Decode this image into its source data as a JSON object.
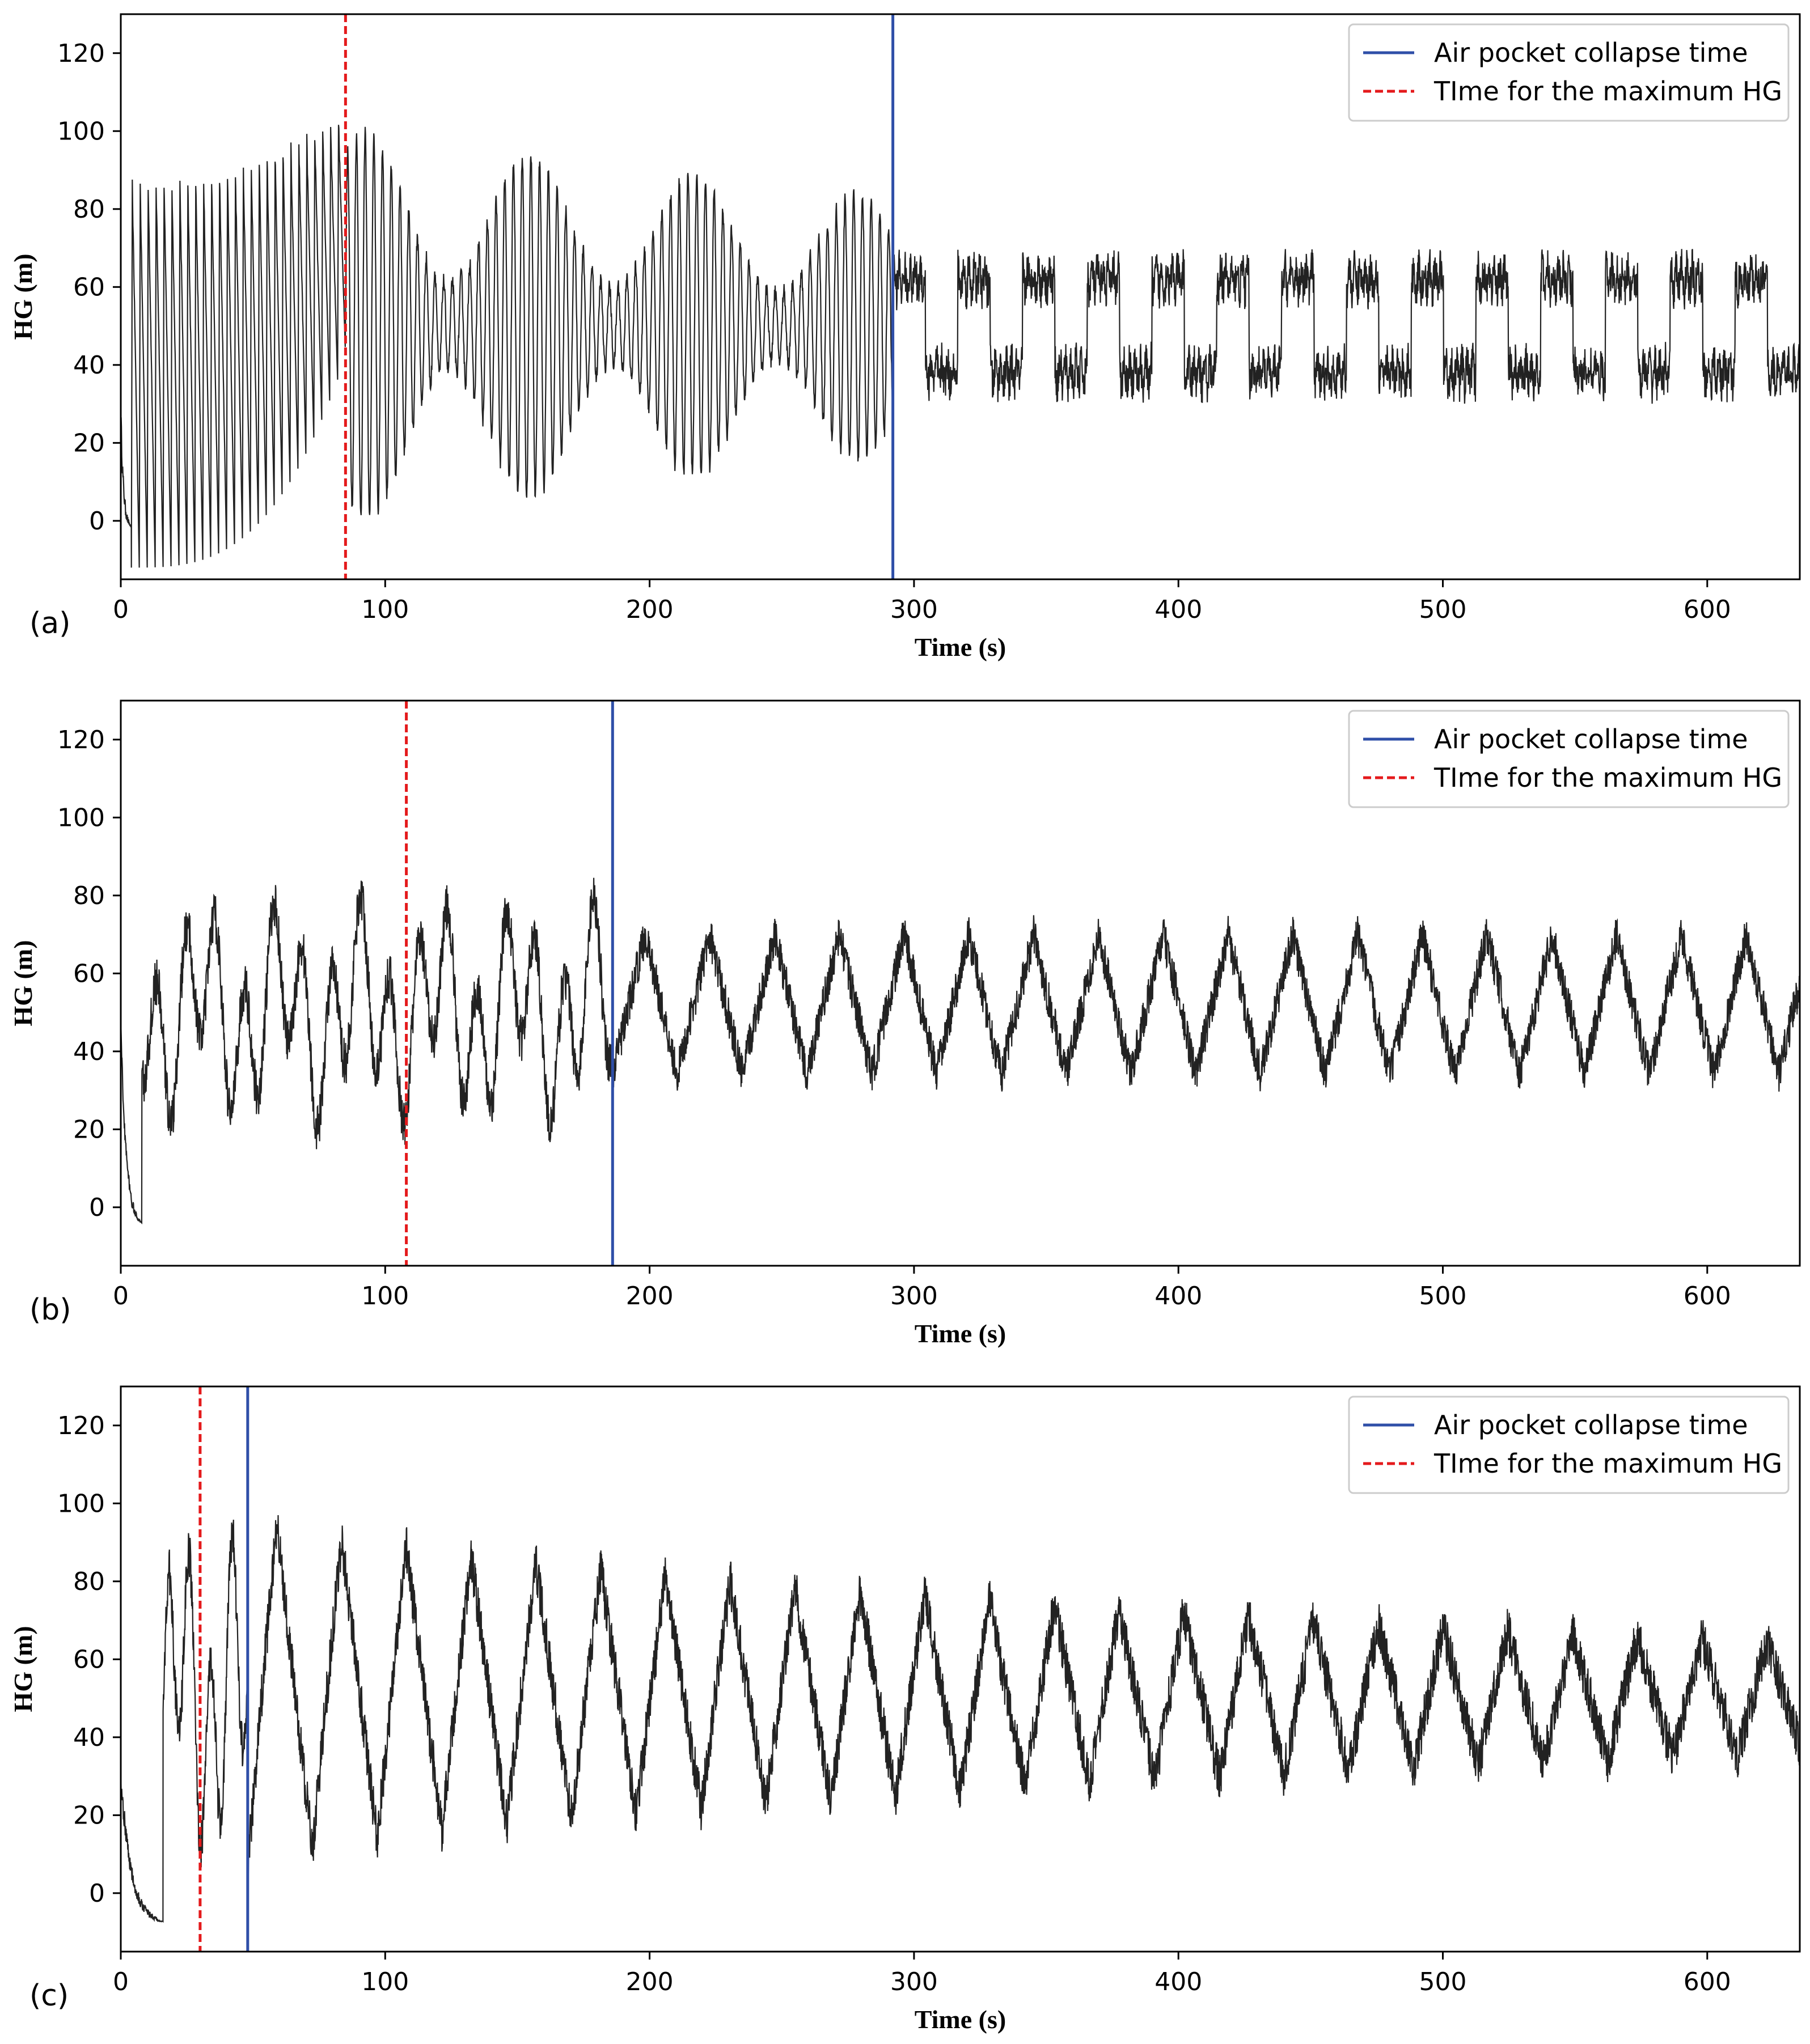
{
  "chart_data": [
    {
      "type": "line",
      "panel_label": "(a)",
      "xlabel": "Time (s)",
      "ylabel": "HG (m)",
      "xlim": [
        0,
        635
      ],
      "ylim": [
        -15,
        130
      ],
      "xticks": [
        0,
        100,
        200,
        300,
        400,
        500,
        600
      ],
      "yticks": [
        0,
        20,
        40,
        60,
        80,
        100,
        120
      ],
      "legend_position": "top-right",
      "legend": [
        "Air pocket collapse time",
        "TIme for the maximum HG"
      ],
      "collapse_time": 292,
      "max_hg_time": 85,
      "series": {
        "name": "HG",
        "color": "#222222",
        "segments": [
          {
            "t0": 0,
            "t1": 4,
            "period": 3.0,
            "kind": "decay",
            "hi": 28,
            "lo": -2
          },
          {
            "t0": 4,
            "t1": 85,
            "period": 3.0,
            "kind": "osc",
            "hi0": 86,
            "hi1": 104,
            "lo0": -12,
            "lo1": 42
          },
          {
            "t0": 85,
            "t1": 292,
            "period": 3.3,
            "kind": "beat",
            "center": 50,
            "amp_min": 12,
            "amp_max": 50,
            "beat": 62
          },
          {
            "t0": 292,
            "t1": 635,
            "period": 24.5,
            "kind": "square",
            "hi": 62,
            "lo": 38,
            "noise": 5
          }
        ]
      }
    },
    {
      "type": "line",
      "panel_label": "(b)",
      "xlabel": "Time (s)",
      "ylabel": "HG (m)",
      "xlim": [
        0,
        635
      ],
      "ylim": [
        -15,
        130
      ],
      "xticks": [
        0,
        100,
        200,
        300,
        400,
        500,
        600
      ],
      "yticks": [
        0,
        20,
        40,
        60,
        80,
        100,
        120
      ],
      "legend_position": "top-right",
      "legend": [
        "Air pocket collapse time",
        "TIme for the maximum HG"
      ],
      "collapse_time": 186,
      "max_hg_time": 108,
      "series": {
        "name": "HG",
        "color": "#222222",
        "segments": [
          {
            "t0": 0,
            "t1": 8,
            "period": 0.6,
            "kind": "decay",
            "hi": 48,
            "lo": -5
          },
          {
            "t0": 8,
            "t1": 186,
            "period": 11,
            "kind": "irregular",
            "center": 50,
            "amp": 30
          },
          {
            "t0": 186,
            "t1": 635,
            "period": 24.5,
            "kind": "triangle",
            "hi": 70,
            "lo": 34,
            "noise": 5
          }
        ]
      }
    },
    {
      "type": "line",
      "panel_label": "(c)",
      "xlabel": "Time (s)",
      "ylabel": "HG (m)",
      "xlim": [
        0,
        635
      ],
      "ylim": [
        -15,
        130
      ],
      "xticks": [
        0,
        100,
        200,
        300,
        400,
        500,
        600
      ],
      "yticks": [
        0,
        20,
        40,
        60,
        80,
        100,
        120
      ],
      "legend_position": "top-right",
      "legend": [
        "Air pocket collapse time",
        "TIme for the maximum HG"
      ],
      "collapse_time": 48,
      "max_hg_time": 30,
      "series": {
        "name": "HG",
        "color": "#222222",
        "segments": [
          {
            "t0": 0,
            "t1": 16,
            "period": 0.5,
            "kind": "decay",
            "hi": 30,
            "lo": -8
          },
          {
            "t0": 16,
            "t1": 48,
            "period": 8,
            "kind": "irregular",
            "center": 50,
            "amp": 45
          },
          {
            "t0": 48,
            "t1": 635,
            "period": 24.5,
            "kind": "sawtooth",
            "hi0": 100,
            "hi1": 64,
            "lo0": 5,
            "lo1": 36,
            "noise": 6
          }
        ]
      }
    }
  ]
}
